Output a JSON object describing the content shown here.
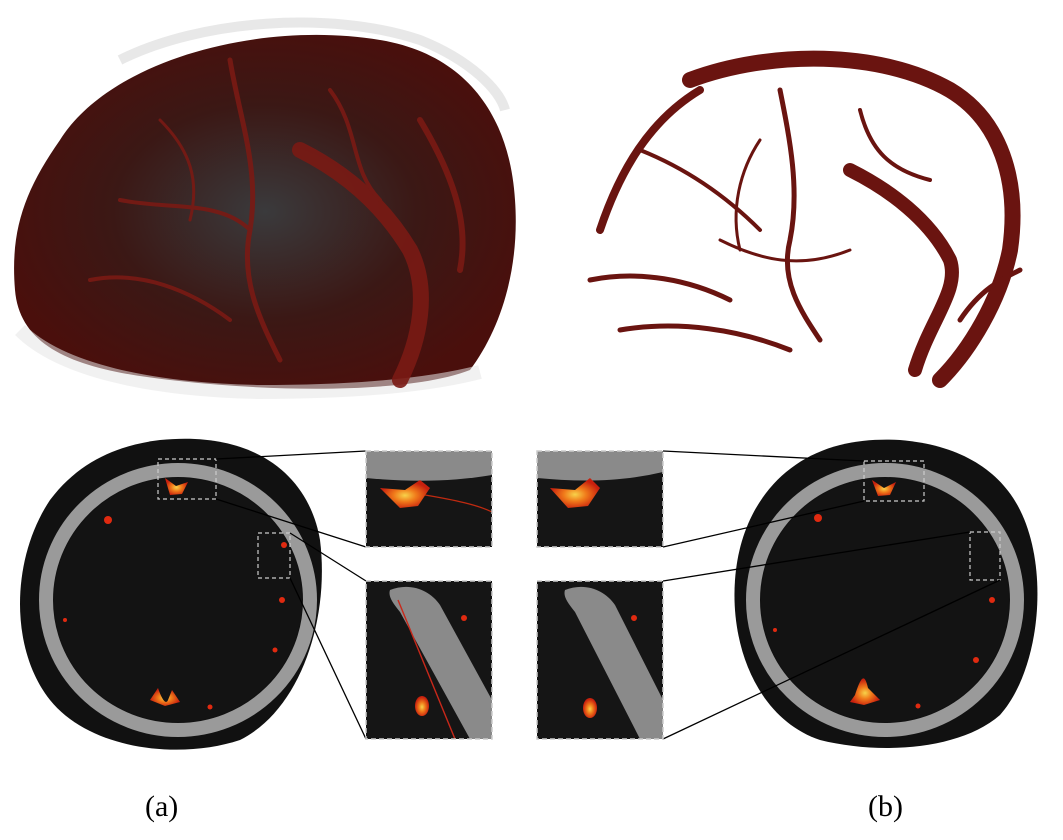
{
  "figure": {
    "panel_a": {
      "label": "(a)"
    },
    "panel_b": {
      "label": "(b)"
    }
  },
  "colors": {
    "vessel_dark": "#5a0e0c",
    "vessel": "#7a1a14",
    "skull_outer": "#111111",
    "bone": "#9a9a9a",
    "interior": "#131313",
    "highlight_red": "#e02a10",
    "highlight_yellow": "#f5c63a"
  }
}
